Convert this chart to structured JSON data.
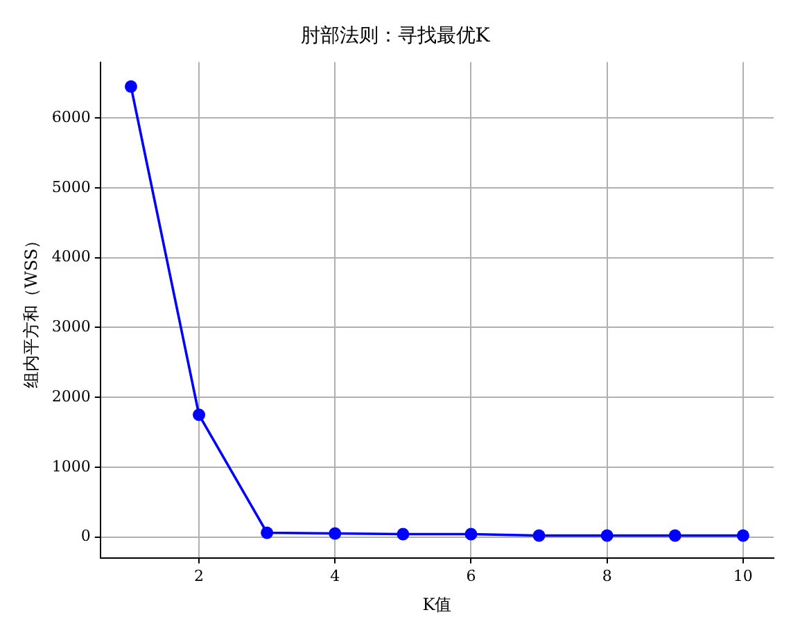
{
  "chart_data": {
    "type": "line",
    "title": "肘部法则：寻找最优K",
    "xlabel": "K值",
    "ylabel": "组内平方和（WSS）",
    "x": [
      1,
      2,
      3,
      4,
      5,
      6,
      7,
      8,
      9,
      10
    ],
    "series": [
      {
        "color": "#0000ff",
        "values": [
          6450,
          1750,
          60,
          50,
          40,
          40,
          20,
          20,
          20,
          20
        ]
      }
    ],
    "xlim": [
      0.55,
      10.45
    ],
    "xticks": [
      2,
      4,
      6,
      8,
      10
    ],
    "ylim": [
      -300,
      6800
    ],
    "yticks": [
      0,
      1000,
      2000,
      3000,
      4000,
      5000,
      6000
    ],
    "grid": true,
    "marker": "circle",
    "line_style": "solid"
  }
}
